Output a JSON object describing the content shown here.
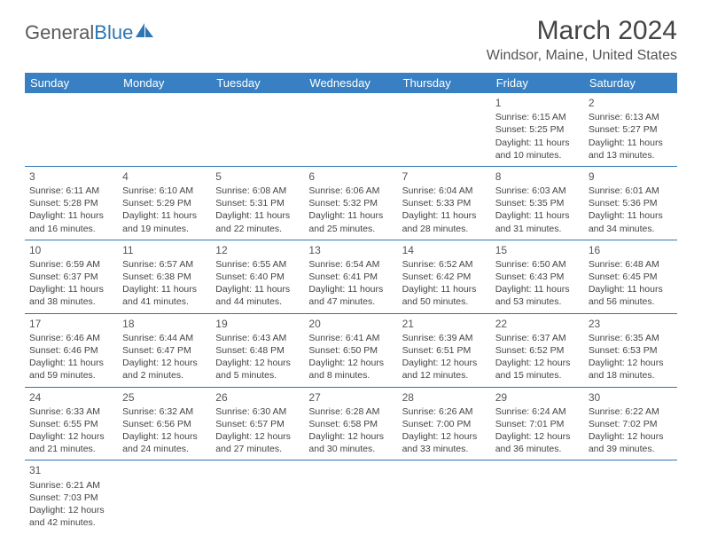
{
  "brand": {
    "text1": "General",
    "text2": "Blue"
  },
  "title": "March 2024",
  "location": "Windsor, Maine, United States",
  "colors": {
    "header_bg": "#3880c3",
    "rule": "#2e76b5",
    "text": "#444444"
  },
  "dow": [
    "Sunday",
    "Monday",
    "Tuesday",
    "Wednesday",
    "Thursday",
    "Friday",
    "Saturday"
  ],
  "weeks": [
    [
      null,
      null,
      null,
      null,
      null,
      {
        "n": "1",
        "sr": "Sunrise: 6:15 AM",
        "ss": "Sunset: 5:25 PM",
        "d1": "Daylight: 11 hours",
        "d2": "and 10 minutes."
      },
      {
        "n": "2",
        "sr": "Sunrise: 6:13 AM",
        "ss": "Sunset: 5:27 PM",
        "d1": "Daylight: 11 hours",
        "d2": "and 13 minutes."
      }
    ],
    [
      {
        "n": "3",
        "sr": "Sunrise: 6:11 AM",
        "ss": "Sunset: 5:28 PM",
        "d1": "Daylight: 11 hours",
        "d2": "and 16 minutes."
      },
      {
        "n": "4",
        "sr": "Sunrise: 6:10 AM",
        "ss": "Sunset: 5:29 PM",
        "d1": "Daylight: 11 hours",
        "d2": "and 19 minutes."
      },
      {
        "n": "5",
        "sr": "Sunrise: 6:08 AM",
        "ss": "Sunset: 5:31 PM",
        "d1": "Daylight: 11 hours",
        "d2": "and 22 minutes."
      },
      {
        "n": "6",
        "sr": "Sunrise: 6:06 AM",
        "ss": "Sunset: 5:32 PM",
        "d1": "Daylight: 11 hours",
        "d2": "and 25 minutes."
      },
      {
        "n": "7",
        "sr": "Sunrise: 6:04 AM",
        "ss": "Sunset: 5:33 PM",
        "d1": "Daylight: 11 hours",
        "d2": "and 28 minutes."
      },
      {
        "n": "8",
        "sr": "Sunrise: 6:03 AM",
        "ss": "Sunset: 5:35 PM",
        "d1": "Daylight: 11 hours",
        "d2": "and 31 minutes."
      },
      {
        "n": "9",
        "sr": "Sunrise: 6:01 AM",
        "ss": "Sunset: 5:36 PM",
        "d1": "Daylight: 11 hours",
        "d2": "and 34 minutes."
      }
    ],
    [
      {
        "n": "10",
        "sr": "Sunrise: 6:59 AM",
        "ss": "Sunset: 6:37 PM",
        "d1": "Daylight: 11 hours",
        "d2": "and 38 minutes."
      },
      {
        "n": "11",
        "sr": "Sunrise: 6:57 AM",
        "ss": "Sunset: 6:38 PM",
        "d1": "Daylight: 11 hours",
        "d2": "and 41 minutes."
      },
      {
        "n": "12",
        "sr": "Sunrise: 6:55 AM",
        "ss": "Sunset: 6:40 PM",
        "d1": "Daylight: 11 hours",
        "d2": "and 44 minutes."
      },
      {
        "n": "13",
        "sr": "Sunrise: 6:54 AM",
        "ss": "Sunset: 6:41 PM",
        "d1": "Daylight: 11 hours",
        "d2": "and 47 minutes."
      },
      {
        "n": "14",
        "sr": "Sunrise: 6:52 AM",
        "ss": "Sunset: 6:42 PM",
        "d1": "Daylight: 11 hours",
        "d2": "and 50 minutes."
      },
      {
        "n": "15",
        "sr": "Sunrise: 6:50 AM",
        "ss": "Sunset: 6:43 PM",
        "d1": "Daylight: 11 hours",
        "d2": "and 53 minutes."
      },
      {
        "n": "16",
        "sr": "Sunrise: 6:48 AM",
        "ss": "Sunset: 6:45 PM",
        "d1": "Daylight: 11 hours",
        "d2": "and 56 minutes."
      }
    ],
    [
      {
        "n": "17",
        "sr": "Sunrise: 6:46 AM",
        "ss": "Sunset: 6:46 PM",
        "d1": "Daylight: 11 hours",
        "d2": "and 59 minutes."
      },
      {
        "n": "18",
        "sr": "Sunrise: 6:44 AM",
        "ss": "Sunset: 6:47 PM",
        "d1": "Daylight: 12 hours",
        "d2": "and 2 minutes."
      },
      {
        "n": "19",
        "sr": "Sunrise: 6:43 AM",
        "ss": "Sunset: 6:48 PM",
        "d1": "Daylight: 12 hours",
        "d2": "and 5 minutes."
      },
      {
        "n": "20",
        "sr": "Sunrise: 6:41 AM",
        "ss": "Sunset: 6:50 PM",
        "d1": "Daylight: 12 hours",
        "d2": "and 8 minutes."
      },
      {
        "n": "21",
        "sr": "Sunrise: 6:39 AM",
        "ss": "Sunset: 6:51 PM",
        "d1": "Daylight: 12 hours",
        "d2": "and 12 minutes."
      },
      {
        "n": "22",
        "sr": "Sunrise: 6:37 AM",
        "ss": "Sunset: 6:52 PM",
        "d1": "Daylight: 12 hours",
        "d2": "and 15 minutes."
      },
      {
        "n": "23",
        "sr": "Sunrise: 6:35 AM",
        "ss": "Sunset: 6:53 PM",
        "d1": "Daylight: 12 hours",
        "d2": "and 18 minutes."
      }
    ],
    [
      {
        "n": "24",
        "sr": "Sunrise: 6:33 AM",
        "ss": "Sunset: 6:55 PM",
        "d1": "Daylight: 12 hours",
        "d2": "and 21 minutes."
      },
      {
        "n": "25",
        "sr": "Sunrise: 6:32 AM",
        "ss": "Sunset: 6:56 PM",
        "d1": "Daylight: 12 hours",
        "d2": "and 24 minutes."
      },
      {
        "n": "26",
        "sr": "Sunrise: 6:30 AM",
        "ss": "Sunset: 6:57 PM",
        "d1": "Daylight: 12 hours",
        "d2": "and 27 minutes."
      },
      {
        "n": "27",
        "sr": "Sunrise: 6:28 AM",
        "ss": "Sunset: 6:58 PM",
        "d1": "Daylight: 12 hours",
        "d2": "and 30 minutes."
      },
      {
        "n": "28",
        "sr": "Sunrise: 6:26 AM",
        "ss": "Sunset: 7:00 PM",
        "d1": "Daylight: 12 hours",
        "d2": "and 33 minutes."
      },
      {
        "n": "29",
        "sr": "Sunrise: 6:24 AM",
        "ss": "Sunset: 7:01 PM",
        "d1": "Daylight: 12 hours",
        "d2": "and 36 minutes."
      },
      {
        "n": "30",
        "sr": "Sunrise: 6:22 AM",
        "ss": "Sunset: 7:02 PM",
        "d1": "Daylight: 12 hours",
        "d2": "and 39 minutes."
      }
    ],
    [
      {
        "n": "31",
        "sr": "Sunrise: 6:21 AM",
        "ss": "Sunset: 7:03 PM",
        "d1": "Daylight: 12 hours",
        "d2": "and 42 minutes."
      },
      null,
      null,
      null,
      null,
      null,
      null
    ]
  ]
}
